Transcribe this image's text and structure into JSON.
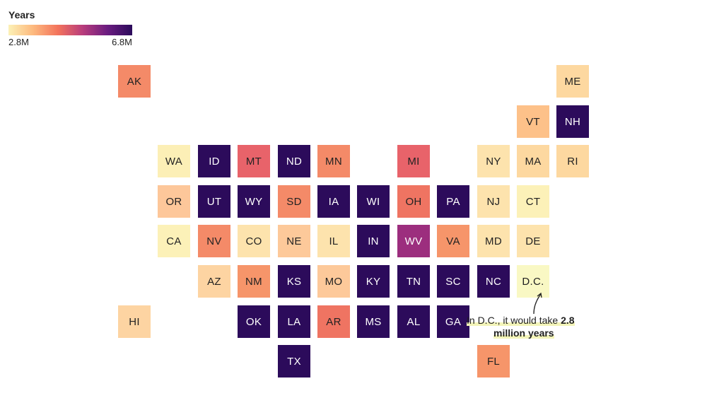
{
  "legend": {
    "title": "Years",
    "min_label": "2.8M",
    "max_label": "6.8M",
    "colors": [
      "#fcf1b6",
      "#fdb97e",
      "#f3735c",
      "#b83c7c",
      "#6a1c80",
      "#2c0b5b"
    ]
  },
  "states": [
    {
      "abbr": "AK",
      "row": 0,
      "col": 0,
      "color": "#f48a68",
      "text": "#222222"
    },
    {
      "abbr": "ME",
      "row": 0,
      "col": 11,
      "color": "#fdd8a0",
      "text": "#222222"
    },
    {
      "abbr": "VT",
      "row": 1,
      "col": 10,
      "color": "#fdc189",
      "text": "#222222"
    },
    {
      "abbr": "NH",
      "row": 1,
      "col": 11,
      "color": "#2c0b5b",
      "text": "#ffffff"
    },
    {
      "abbr": "WA",
      "row": 2,
      "col": 1,
      "color": "#fcefb6",
      "text": "#222222"
    },
    {
      "abbr": "ID",
      "row": 2,
      "col": 2,
      "color": "#2c0b5b",
      "text": "#ffffff"
    },
    {
      "abbr": "MT",
      "row": 2,
      "col": 3,
      "color": "#e8636a",
      "text": "#222222"
    },
    {
      "abbr": "ND",
      "row": 2,
      "col": 4,
      "color": "#2c0b5b",
      "text": "#ffffff"
    },
    {
      "abbr": "MN",
      "row": 2,
      "col": 5,
      "color": "#f48a68",
      "text": "#222222"
    },
    {
      "abbr": "MI",
      "row": 2,
      "col": 7,
      "color": "#e8636a",
      "text": "#222222"
    },
    {
      "abbr": "NY",
      "row": 2,
      "col": 9,
      "color": "#fde3ad",
      "text": "#222222"
    },
    {
      "abbr": "MA",
      "row": 2,
      "col": 10,
      "color": "#fdd8a0",
      "text": "#222222"
    },
    {
      "abbr": "RI",
      "row": 2,
      "col": 11,
      "color": "#fdd8a0",
      "text": "#222222"
    },
    {
      "abbr": "OR",
      "row": 3,
      "col": 1,
      "color": "#fdc79a",
      "text": "#222222"
    },
    {
      "abbr": "UT",
      "row": 3,
      "col": 2,
      "color": "#2c0b5b",
      "text": "#ffffff"
    },
    {
      "abbr": "WY",
      "row": 3,
      "col": 3,
      "color": "#2c0b5b",
      "text": "#ffffff"
    },
    {
      "abbr": "SD",
      "row": 3,
      "col": 4,
      "color": "#f48a68",
      "text": "#222222"
    },
    {
      "abbr": "IA",
      "row": 3,
      "col": 5,
      "color": "#2c0b5b",
      "text": "#ffffff"
    },
    {
      "abbr": "WI",
      "row": 3,
      "col": 6,
      "color": "#2c0b5b",
      "text": "#ffffff"
    },
    {
      "abbr": "OH",
      "row": 3,
      "col": 7,
      "color": "#ef7462",
      "text": "#222222"
    },
    {
      "abbr": "PA",
      "row": 3,
      "col": 8,
      "color": "#2c0b5b",
      "text": "#ffffff"
    },
    {
      "abbr": "NJ",
      "row": 3,
      "col": 9,
      "color": "#fde3ad",
      "text": "#222222"
    },
    {
      "abbr": "CT",
      "row": 3,
      "col": 10,
      "color": "#fcf1b8",
      "text": "#222222"
    },
    {
      "abbr": "CA",
      "row": 4,
      "col": 1,
      "color": "#fcf1b8",
      "text": "#222222"
    },
    {
      "abbr": "NV",
      "row": 4,
      "col": 2,
      "color": "#f48a68",
      "text": "#222222"
    },
    {
      "abbr": "CO",
      "row": 4,
      "col": 3,
      "color": "#fde3ad",
      "text": "#222222"
    },
    {
      "abbr": "NE",
      "row": 4,
      "col": 4,
      "color": "#fdc99a",
      "text": "#222222"
    },
    {
      "abbr": "IL",
      "row": 4,
      "col": 5,
      "color": "#fde3ad",
      "text": "#222222"
    },
    {
      "abbr": "IN",
      "row": 4,
      "col": 6,
      "color": "#2c0b5b",
      "text": "#ffffff"
    },
    {
      "abbr": "WV",
      "row": 4,
      "col": 7,
      "color": "#9c2e7e",
      "text": "#ffffff"
    },
    {
      "abbr": "VA",
      "row": 4,
      "col": 8,
      "color": "#f6956a",
      "text": "#222222"
    },
    {
      "abbr": "MD",
      "row": 4,
      "col": 9,
      "color": "#fde3ad",
      "text": "#222222"
    },
    {
      "abbr": "DE",
      "row": 4,
      "col": 10,
      "color": "#fde3ad",
      "text": "#222222"
    },
    {
      "abbr": "AZ",
      "row": 5,
      "col": 2,
      "color": "#fdd4a2",
      "text": "#222222"
    },
    {
      "abbr": "NM",
      "row": 5,
      "col": 3,
      "color": "#f6956a",
      "text": "#222222"
    },
    {
      "abbr": "KS",
      "row": 5,
      "col": 4,
      "color": "#2c0b5b",
      "text": "#ffffff"
    },
    {
      "abbr": "MO",
      "row": 5,
      "col": 5,
      "color": "#fdc99a",
      "text": "#222222"
    },
    {
      "abbr": "KY",
      "row": 5,
      "col": 6,
      "color": "#2c0b5b",
      "text": "#ffffff"
    },
    {
      "abbr": "TN",
      "row": 5,
      "col": 7,
      "color": "#2c0b5b",
      "text": "#ffffff"
    },
    {
      "abbr": "SC",
      "row": 5,
      "col": 8,
      "color": "#2c0b5b",
      "text": "#ffffff"
    },
    {
      "abbr": "NC",
      "row": 5,
      "col": 9,
      "color": "#2c0b5b",
      "text": "#ffffff"
    },
    {
      "abbr": "D.C.",
      "row": 5,
      "col": 10,
      "color": "#f9f8c4",
      "text": "#222222"
    },
    {
      "abbr": "HI",
      "row": 6,
      "col": 0,
      "color": "#fdd4a2",
      "text": "#222222"
    },
    {
      "abbr": "OK",
      "row": 6,
      "col": 3,
      "color": "#2c0b5b",
      "text": "#ffffff"
    },
    {
      "abbr": "LA",
      "row": 6,
      "col": 4,
      "color": "#2c0b5b",
      "text": "#ffffff"
    },
    {
      "abbr": "AR",
      "row": 6,
      "col": 5,
      "color": "#ef7462",
      "text": "#222222"
    },
    {
      "abbr": "MS",
      "row": 6,
      "col": 6,
      "color": "#2c0b5b",
      "text": "#ffffff"
    },
    {
      "abbr": "AL",
      "row": 6,
      "col": 7,
      "color": "#2c0b5b",
      "text": "#ffffff"
    },
    {
      "abbr": "GA",
      "row": 6,
      "col": 8,
      "color": "#2c0b5b",
      "text": "#ffffff"
    },
    {
      "abbr": "TX",
      "row": 7,
      "col": 4,
      "color": "#2c0b5b",
      "text": "#ffffff"
    },
    {
      "abbr": "FL",
      "row": 7,
      "col": 9,
      "color": "#f6956a",
      "text": "#222222"
    }
  ],
  "annotation": {
    "text_before": "In D.C., it would take ",
    "value_bold": "2.8",
    "text_bold2": "million years"
  }
}
